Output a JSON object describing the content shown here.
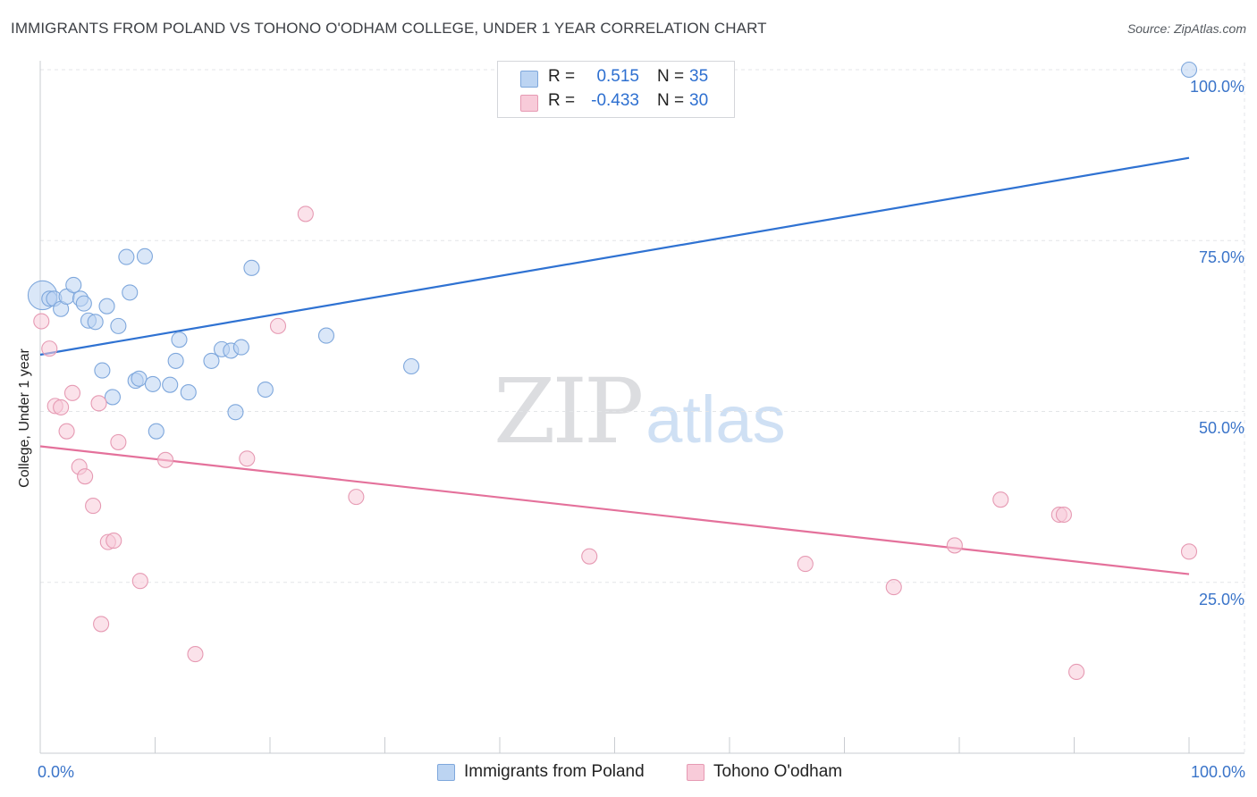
{
  "title": "IMMIGRANTS FROM POLAND VS TOHONO O'ODHAM COLLEGE, UNDER 1 YEAR CORRELATION CHART",
  "source": "Source: ZipAtlas.com",
  "watermark": {
    "zip": "ZIP",
    "atlas": "atlas"
  },
  "legend": {
    "poland": {
      "r_label": "R =",
      "r_value": "0.515",
      "n_label": "N =",
      "n_value": "35"
    },
    "tohono": {
      "r_label": "R =",
      "r_value": "-0.433",
      "n_label": "N =",
      "n_value": "30"
    }
  },
  "colors": {
    "poland_fill": "#bcd4f2",
    "poland_stroke": "#7ea7dc",
    "poland_line": "#2f72d2",
    "tohono_fill": "#f8cbd9",
    "tohono_stroke": "#e69ab3",
    "tohono_line": "#e4719b",
    "tick_text": "#3a74c9",
    "grid": "#e3e5e8"
  },
  "chart_data": {
    "type": "scatter",
    "title": "IMMIGRANTS FROM POLAND VS TOHONO O'ODHAM COLLEGE, UNDER 1 YEAR CORRELATION CHART",
    "xlabel": "",
    "ylabel": "College, Under 1 year",
    "xlim": [
      0,
      100
    ],
    "ylim": [
      0,
      100
    ],
    "x_tick_labels": [
      "0.0%",
      "100.0%"
    ],
    "y_ticks": [
      25,
      50,
      75,
      100
    ],
    "y_tick_labels": [
      "25.0%",
      "50.0%",
      "75.0%",
      "100.0%"
    ],
    "grid": true,
    "series": [
      {
        "name": "Immigrants from Poland",
        "color": "#bcd4f2",
        "points": [
          [
            0.2,
            67.0
          ],
          [
            0.8,
            66.5
          ],
          [
            1.2,
            66.5
          ],
          [
            1.8,
            65.0
          ],
          [
            2.3,
            66.8
          ],
          [
            2.9,
            68.5
          ],
          [
            3.5,
            66.5
          ],
          [
            3.8,
            65.8
          ],
          [
            4.2,
            63.3
          ],
          [
            4.8,
            63.1
          ],
          [
            5.4,
            56.0
          ],
          [
            5.8,
            65.4
          ],
          [
            6.3,
            52.1
          ],
          [
            6.8,
            62.5
          ],
          [
            7.5,
            72.6
          ],
          [
            7.8,
            67.4
          ],
          [
            8.3,
            54.5
          ],
          [
            8.6,
            54.8
          ],
          [
            9.1,
            72.7
          ],
          [
            9.8,
            54.0
          ],
          [
            10.1,
            47.1
          ],
          [
            11.3,
            53.9
          ],
          [
            11.8,
            57.4
          ],
          [
            12.1,
            60.5
          ],
          [
            12.9,
            52.8
          ],
          [
            14.9,
            57.4
          ],
          [
            15.8,
            59.1
          ],
          [
            16.6,
            58.9
          ],
          [
            17.0,
            49.9
          ],
          [
            17.5,
            59.4
          ],
          [
            18.4,
            71.0
          ],
          [
            19.6,
            53.2
          ],
          [
            24.9,
            61.1
          ],
          [
            32.3,
            56.6
          ],
          [
            100.0,
            100.0
          ]
        ],
        "sizes": [
          1.9,
          1,
          1,
          1,
          1,
          1,
          1,
          1,
          1,
          1,
          1,
          1,
          1,
          1,
          1,
          1,
          1,
          1,
          1,
          1,
          1,
          1,
          1,
          1,
          1,
          1,
          1,
          1,
          1,
          1,
          1,
          1,
          1,
          1,
          1
        ],
        "trend": {
          "x": [
            0,
            100
          ],
          "y": [
            58.3,
            87.1
          ]
        }
      },
      {
        "name": "Tohono O'odham",
        "color": "#f8cbd9",
        "points": [
          [
            0.1,
            63.2
          ],
          [
            0.8,
            59.2
          ],
          [
            1.3,
            50.8
          ],
          [
            1.8,
            50.6
          ],
          [
            2.3,
            47.1
          ],
          [
            2.8,
            52.7
          ],
          [
            3.4,
            41.9
          ],
          [
            3.9,
            40.5
          ],
          [
            4.6,
            36.2
          ],
          [
            5.1,
            51.2
          ],
          [
            5.3,
            18.9
          ],
          [
            5.9,
            30.9
          ],
          [
            6.4,
            31.1
          ],
          [
            6.8,
            45.5
          ],
          [
            8.7,
            25.2
          ],
          [
            10.9,
            42.9
          ],
          [
            13.5,
            14.5
          ],
          [
            18.0,
            43.1
          ],
          [
            20.7,
            62.5
          ],
          [
            23.1,
            78.9
          ],
          [
            27.5,
            37.5
          ],
          [
            47.8,
            28.8
          ],
          [
            66.6,
            27.7
          ],
          [
            74.3,
            24.3
          ],
          [
            79.6,
            30.4
          ],
          [
            83.6,
            37.1
          ],
          [
            88.7,
            34.9
          ],
          [
            89.1,
            34.9
          ],
          [
            90.2,
            11.9
          ],
          [
            100.0,
            29.5
          ]
        ],
        "sizes": [
          1,
          1,
          1,
          1,
          1,
          1,
          1,
          1,
          1,
          1,
          1,
          1,
          1,
          1,
          1,
          1,
          1,
          1,
          1,
          1,
          1,
          1,
          1,
          1,
          1,
          1,
          1,
          1,
          1,
          1
        ],
        "trend": {
          "x": [
            0,
            100
          ],
          "y": [
            44.9,
            26.2
          ]
        }
      }
    ]
  },
  "bottom_legend": {
    "poland_label": "Immigrants from Poland",
    "tohono_label": "Tohono O'odham"
  }
}
